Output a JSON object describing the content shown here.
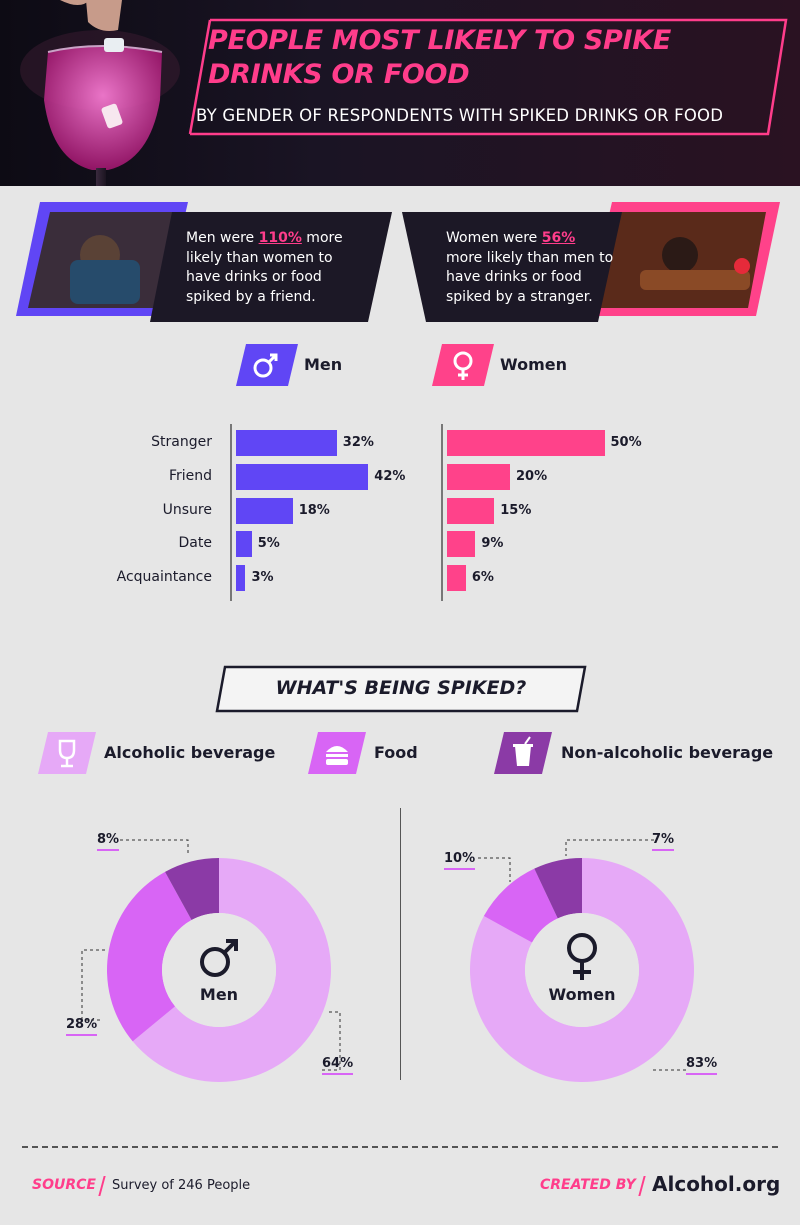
{
  "header": {
    "title": "PEOPLE MOST LIKELY TO SPIKE DRINKS OR FOOD",
    "subtitle": "BY GENDER OF RESPONDENTS WITH SPIKED DRINKS OR FOOD"
  },
  "callouts": {
    "men": {
      "pre": "Men were ",
      "highlight": "110%",
      "post": " more likely than women to have drinks or food spiked by a friend."
    },
    "women": {
      "pre": "Women were ",
      "highlight": "56%",
      "post": " more likely than men to have drinks or food spiked by a stranger."
    }
  },
  "colors": {
    "men": "#6046f5",
    "women": "#ff428a",
    "alcoholic": "#e6a9f7",
    "food": "#d865f5",
    "non_alcoholic": "#8b3aa6",
    "accent": "#ff3d8b"
  },
  "chart_data": [
    {
      "type": "bar",
      "categories": [
        "Stranger",
        "Friend",
        "Unsure",
        "Date",
        "Acquaintance"
      ],
      "series": [
        {
          "name": "Men",
          "values": [
            32,
            42,
            18,
            5,
            3
          ],
          "labels": [
            "32%",
            "42%",
            "18%",
            "5%",
            "3%"
          ],
          "icon": "male-symbol-icon"
        },
        {
          "name": "Women",
          "values": [
            50,
            20,
            15,
            9,
            6
          ],
          "labels": [
            "50%",
            "20%",
            "15%",
            "9%",
            "6%"
          ],
          "icon": "female-symbol-icon"
        }
      ]
    },
    {
      "type": "pie",
      "title": "WHAT'S BEING SPIKED?",
      "legend": [
        {
          "label": "Alcoholic beverage",
          "icon": "wine-glass-icon"
        },
        {
          "label": "Food",
          "icon": "burger-icon"
        },
        {
          "label": "Non-alcoholic beverage",
          "icon": "cup-icon"
        }
      ],
      "pies": [
        {
          "name": "Men",
          "categories": [
            "Alcoholic beverage",
            "Food",
            "Non-alcoholic beverage"
          ],
          "values": [
            64,
            28,
            8
          ],
          "labels": [
            "64%",
            "28%",
            "8%"
          ]
        },
        {
          "name": "Women",
          "categories": [
            "Alcoholic beverage",
            "Food",
            "Non-alcoholic beverage"
          ],
          "values": [
            83,
            10,
            7
          ],
          "labels": [
            "83%",
            "10%",
            "7%"
          ]
        }
      ]
    }
  ],
  "footer": {
    "source_label": "SOURCE",
    "source_text": "Survey of 246 People",
    "created_label": "CREATED BY",
    "brand": "Alcohol.org"
  }
}
